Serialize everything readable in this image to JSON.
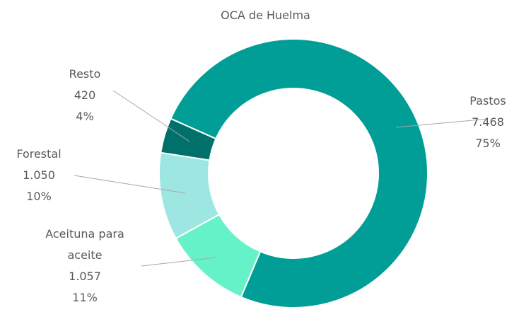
{
  "chart_data": {
    "type": "donut",
    "title": "OCA de Huelma",
    "categories": [
      "Pastos",
      "Aceituna para aceite",
      "Forestal",
      "Resto"
    ],
    "values": [
      7468,
      1057,
      1050,
      420
    ],
    "value_labels": [
      "7.468",
      "1.057",
      "1.050",
      "420"
    ],
    "percent_labels": [
      "75%",
      "11%",
      "10%",
      "4%"
    ],
    "colors": [
      "#009e96",
      "#66f2c8",
      "#9de6e2",
      "#00716a"
    ]
  }
}
